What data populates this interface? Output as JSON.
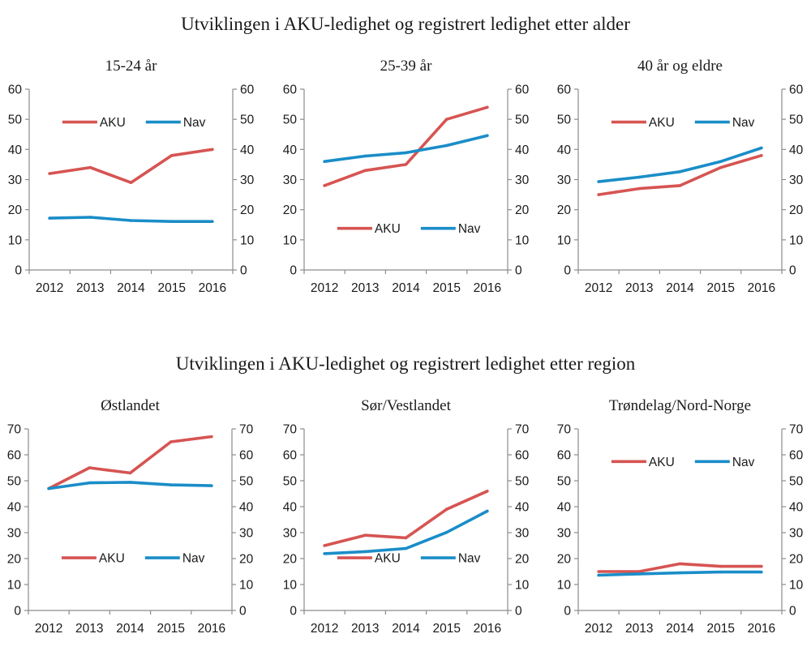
{
  "sections": [
    {
      "title": "Utviklingen i AKU-ledighet og registrert ledighet etter alder"
    },
    {
      "title": "Utviklingen i AKU-ledighet og registrert ledighet etter region"
    }
  ],
  "colors": {
    "AKU": "#d65452",
    "Nav": "#1a8dc8",
    "axis": "#8c8c8c"
  },
  "chart_data": [
    {
      "type": "line",
      "section": 0,
      "title": "15-24 år",
      "categories": [
        "2012",
        "2013",
        "2014",
        "2015",
        "2016"
      ],
      "ylim": [
        0,
        60
      ],
      "yticks": [
        0,
        10,
        20,
        30,
        40,
        50,
        60
      ],
      "y2ticks": [
        0,
        10,
        20,
        30,
        40,
        50,
        60
      ],
      "legend": "top",
      "grid": false,
      "xlabel": "",
      "ylabel": "",
      "series": [
        {
          "name": "AKU",
          "values": [
            32,
            34,
            29,
            38,
            40
          ]
        },
        {
          "name": "Nav",
          "values": [
            17.2,
            17.5,
            16.4,
            16.1,
            16.1
          ]
        }
      ]
    },
    {
      "type": "line",
      "section": 0,
      "title": "25-39 år",
      "categories": [
        "2012",
        "2013",
        "2014",
        "2015",
        "2016"
      ],
      "ylim": [
        0,
        60
      ],
      "yticks": [
        0,
        10,
        20,
        30,
        40,
        50,
        60
      ],
      "y2ticks": [
        0,
        10,
        20,
        30,
        40,
        50,
        60
      ],
      "legend": "bottom",
      "grid": false,
      "xlabel": "",
      "ylabel": "",
      "series": [
        {
          "name": "AKU",
          "values": [
            28,
            33,
            35,
            50,
            54
          ]
        },
        {
          "name": "Nav",
          "values": [
            36,
            37.8,
            38.9,
            41.3,
            44.6
          ]
        }
      ]
    },
    {
      "type": "line",
      "section": 0,
      "title": "40 år og eldre",
      "categories": [
        "2012",
        "2013",
        "2014",
        "2015",
        "2016"
      ],
      "ylim": [
        0,
        60
      ],
      "yticks": [
        0,
        10,
        20,
        30,
        40,
        50,
        60
      ],
      "y2ticks": [
        0,
        10,
        20,
        30,
        40,
        50,
        60
      ],
      "legend": "top",
      "grid": false,
      "xlabel": "",
      "ylabel": "",
      "series": [
        {
          "name": "AKU",
          "values": [
            25,
            27,
            28,
            34,
            38
          ]
        },
        {
          "name": "Nav",
          "values": [
            29.3,
            30.8,
            32.6,
            36,
            40.5
          ]
        }
      ]
    },
    {
      "type": "line",
      "section": 1,
      "title": "Østlandet",
      "categories": [
        "2012",
        "2013",
        "2014",
        "2015",
        "2016"
      ],
      "ylim": [
        0,
        70
      ],
      "yticks": [
        0,
        10,
        20,
        30,
        40,
        50,
        60,
        70
      ],
      "y2ticks": [
        0,
        10,
        20,
        30,
        40,
        50,
        60,
        70
      ],
      "legend": "bottom",
      "grid": false,
      "xlabel": "",
      "ylabel": "",
      "series": [
        {
          "name": "AKU",
          "values": [
            47,
            55,
            53,
            65,
            67
          ]
        },
        {
          "name": "Nav",
          "values": [
            47,
            49.2,
            49.4,
            48.4,
            48.1
          ]
        }
      ]
    },
    {
      "type": "line",
      "section": 1,
      "title": "Sør/Vestlandet",
      "categories": [
        "2012",
        "2013",
        "2014",
        "2015",
        "2016"
      ],
      "ylim": [
        0,
        70
      ],
      "yticks": [
        0,
        10,
        20,
        30,
        40,
        50,
        60,
        70
      ],
      "y2ticks": [
        0,
        10,
        20,
        30,
        40,
        50,
        60,
        70
      ],
      "legend": "bottom",
      "grid": false,
      "xlabel": "",
      "ylabel": "",
      "series": [
        {
          "name": "AKU",
          "values": [
            25,
            29,
            28,
            39,
            46
          ]
        },
        {
          "name": "Nav",
          "values": [
            21.9,
            22.7,
            23.9,
            30.1,
            38.3
          ]
        }
      ]
    },
    {
      "type": "line",
      "section": 1,
      "title": "Trøndelag/Nord-Norge",
      "categories": [
        "2012",
        "2013",
        "2014",
        "2015",
        "2016"
      ],
      "ylim": [
        0,
        70
      ],
      "yticks": [
        0,
        10,
        20,
        30,
        40,
        50,
        60,
        70
      ],
      "y2ticks": [
        0,
        10,
        20,
        30,
        40,
        50,
        60,
        70
      ],
      "legend": "top",
      "grid": false,
      "xlabel": "",
      "ylabel": "",
      "series": [
        {
          "name": "AKU",
          "values": [
            15,
            15,
            18,
            17,
            17
          ]
        },
        {
          "name": "Nav",
          "values": [
            13.6,
            14.1,
            14.5,
            14.8,
            14.8
          ]
        }
      ]
    }
  ]
}
